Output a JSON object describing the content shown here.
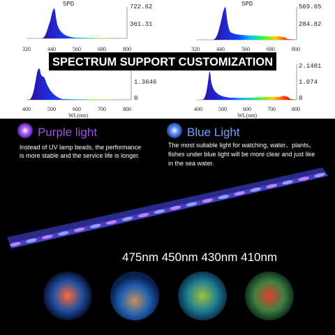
{
  "spectra": [
    {
      "title": "SPD",
      "y_labels": [
        "722.62",
        "361.31"
      ],
      "x_labels": [
        "320",
        "440",
        "560",
        "680",
        "800"
      ]
    },
    {
      "title": "SPD",
      "y_labels": [
        "569.65",
        "284.82"
      ],
      "x_labels": [
        "320",
        "440",
        "560",
        "680",
        "800"
      ]
    },
    {
      "y_labels": [
        "1.3646",
        "0"
      ],
      "x_labels": [
        "400",
        "500",
        "600",
        "700",
        "800"
      ],
      "x_title": "WL(nm)"
    },
    {
      "y_labels": [
        "2.1481",
        "1.074",
        "0"
      ],
      "x_labels": [
        "400",
        "500",
        "600",
        "700",
        "800"
      ],
      "x_title": "WL(nm)"
    }
  ],
  "headline": "SPECTRUM SUPPORT CUSTOMIZATION",
  "features": [
    {
      "title": "Purple light",
      "lines": [
        "Instead of UV lamp beads, the performance",
        "is more stable and the service life is longer."
      ]
    },
    {
      "title": "Blue Light",
      "lines": [
        "The most suitable light for watching, water、plants、",
        "fishes under blue light will be more clear and just like",
        "in the sea water."
      ]
    }
  ],
  "wavelengths": "475nm 450nm 430nm 410nm"
}
